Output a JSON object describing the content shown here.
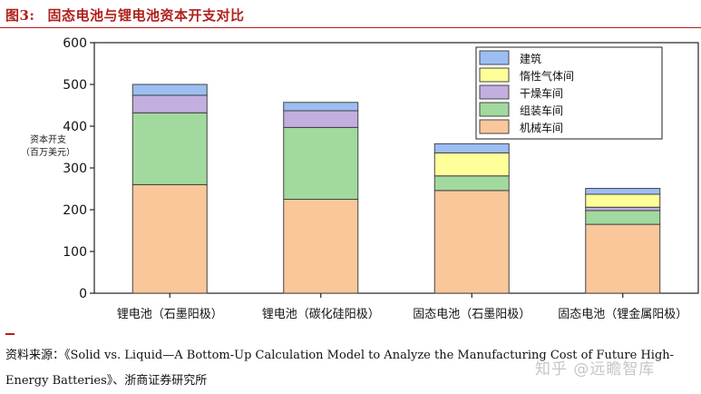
{
  "figure": {
    "number": "图3:",
    "title": "固态电池与锂电池资本开支对比"
  },
  "chart_data": {
    "type": "bar",
    "stacked": true,
    "ylabel_line1": "资本开支",
    "ylabel_line2": "（百万美元）",
    "xlabel": "",
    "ylim": [
      0,
      600
    ],
    "yticks": [
      0,
      100,
      200,
      300,
      400,
      500,
      600
    ],
    "grid": false,
    "legend_position": "top-right",
    "categories": [
      "锂电池（石墨阳极）",
      "锂电池（碳化硅阳极）",
      "固态电池（石墨阳极）",
      "固态电池（锂金属阳极）"
    ],
    "series": [
      {
        "name": "机械车间",
        "color": "#f9c79a",
        "values": [
          260,
          225,
          246,
          165
        ]
      },
      {
        "name": "组装车间",
        "color": "#a2d99e",
        "values": [
          172,
          172,
          35,
          33
        ]
      },
      {
        "name": "干燥车间",
        "color": "#c3aee0",
        "values": [
          42,
          40,
          0,
          8
        ]
      },
      {
        "name": "惰性气体间",
        "color": "#feff99",
        "values": [
          0,
          0,
          55,
          31
        ]
      },
      {
        "name": "建筑",
        "color": "#9cbef2",
        "values": [
          26,
          20,
          22,
          14
        ]
      }
    ]
  },
  "source": {
    "text": "资料来源：《Solid vs. Liquid—A Bottom-Up Calculation Model to Analyze the Manufacturing Cost of Future High-Energy Batteries》、浙商证券研究所"
  },
  "watermark": "知乎 @远瞻智库"
}
